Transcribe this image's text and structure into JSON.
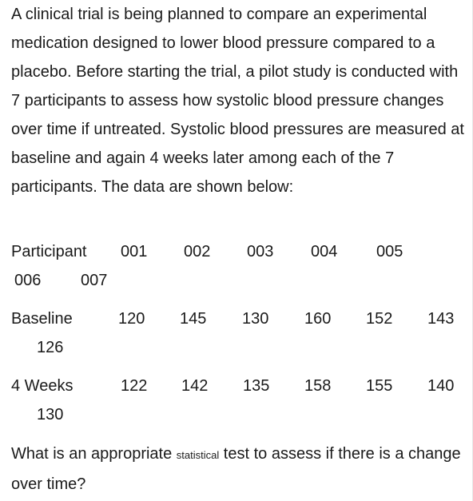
{
  "intro_text": "A clinical trial is being planned to compare an experimental medication designed to lower blood pressure compared to a placebo.  Before starting the trial, a pilot study is conducted with 7 participants to assess how systolic blood pressure changes over time if untreated.  Systolic blood pressures are measured at baseline and again 4 weeks later among each of the 7 participants.  The data are shown below:",
  "table": {
    "participant_label": "Participant",
    "participants": [
      "001",
      "002",
      "003",
      "004",
      "005",
      "006",
      "007"
    ],
    "baseline_label": "Baseline",
    "baseline": [
      "120",
      "145",
      "130",
      "160",
      "152",
      "143",
      "126"
    ],
    "weeks4_label": "4 Weeks",
    "weeks4": [
      "122",
      "142",
      "135",
      "158",
      "155",
      "140",
      "130"
    ]
  },
  "question": {
    "part1": "What is an appropriate ",
    "small_word": "statistical",
    "part2": " test to assess if there is a change over time?"
  }
}
